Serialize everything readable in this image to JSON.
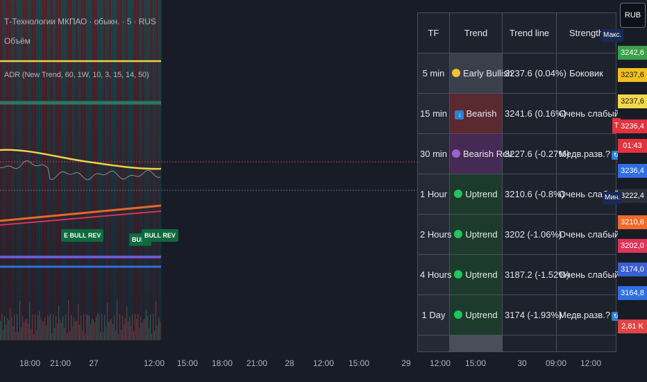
{
  "legend": {
    "symbol_line": "Т-Технологии МКПАО · обыкн. · 5 · RUS",
    "volume_label": "Объём",
    "indicator_line": "ADR (New Trend, 60, 1W, 10, 3, 15, 14, 50)"
  },
  "signals": [
    {
      "label": "E BULL REV"
    },
    {
      "label": "BULL"
    },
    {
      "label": "BULL REV"
    }
  ],
  "table": {
    "headers": [
      "TF",
      "Trend",
      "Trend line",
      "Strength"
    ],
    "rows": [
      {
        "tf": "5 min",
        "trend": "Early Bullish",
        "trend_icon": "yellow-circle",
        "trend_line": "3237.6 (0.04%)",
        "strength": "Боковик",
        "strength_icon": ""
      },
      {
        "tf": "15 min",
        "trend": "Bearish",
        "trend_icon": "down-arrow",
        "trend_line": "3241.6 (0.16%)",
        "strength": "Очень слабый",
        "strength_icon": "warning-icon"
      },
      {
        "tf": "30 min",
        "trend": "Bearish Rev",
        "trend_icon": "purple-circle",
        "trend_line": "3227.6 (-0.27%)",
        "strength": "Медв.разв.?",
        "strength_icon": "sync-icon"
      },
      {
        "tf": "1 Hour",
        "trend": "Uptrend",
        "trend_icon": "green-circle",
        "trend_line": "3210.6 (-0.8%)",
        "strength": "Очень слабый",
        "strength_icon": "warning-icon"
      },
      {
        "tf": "2 Hours",
        "trend": "Uptrend",
        "trend_icon": "green-circle",
        "trend_line": "3202 (-1.06%)",
        "strength": "Очень слабый",
        "strength_icon": "warning-icon"
      },
      {
        "tf": "4 Hours",
        "trend": "Uptrend",
        "trend_icon": "green-circle",
        "trend_line": "3187.2 (-1.52%)",
        "strength": "Очень слабый",
        "strength_icon": "warning-icon"
      },
      {
        "tf": "1 Day",
        "trend": "Uptrend",
        "trend_icon": "green-circle",
        "trend_line": "3174 (-1.93%)",
        "strength": "Медв.разв.?",
        "strength_icon": "sync-icon"
      }
    ]
  },
  "price_scale": {
    "currency": "RUB",
    "max_label": "Макс.",
    "min_label": "Мин.",
    "t_badge": "T",
    "tags": [
      {
        "value": "3242,6",
        "color": "#3aa04a"
      },
      {
        "value": "3237,6",
        "color": "#f0c020"
      },
      {
        "value": "3237,6",
        "color": "#f2d84a"
      },
      {
        "value": "3236,4",
        "color": "#e0333d"
      },
      {
        "value": "01:43",
        "color": "#e0333d"
      },
      {
        "value": "3236,4",
        "color": "#2f6fe0"
      },
      {
        "value": "3222,4",
        "color": "#2a2e3a"
      },
      {
        "value": "3210,6",
        "color": "#f06a2a"
      },
      {
        "value": "3202,0",
        "color": "#e0335a"
      },
      {
        "value": "3174,0",
        "color": "#3a5fd0"
      },
      {
        "value": "3164,8",
        "color": "#2f6fe0"
      },
      {
        "value": "2,81 K",
        "color": "#e04444"
      }
    ]
  },
  "time_axis": [
    "18:00",
    "21:00",
    "27",
    "12:00",
    "15:00",
    "18:00",
    "21:00",
    "28",
    "12:00",
    "15:00",
    "29",
    "12:00",
    "15:00",
    "30",
    "09:00",
    "12:00"
  ]
}
